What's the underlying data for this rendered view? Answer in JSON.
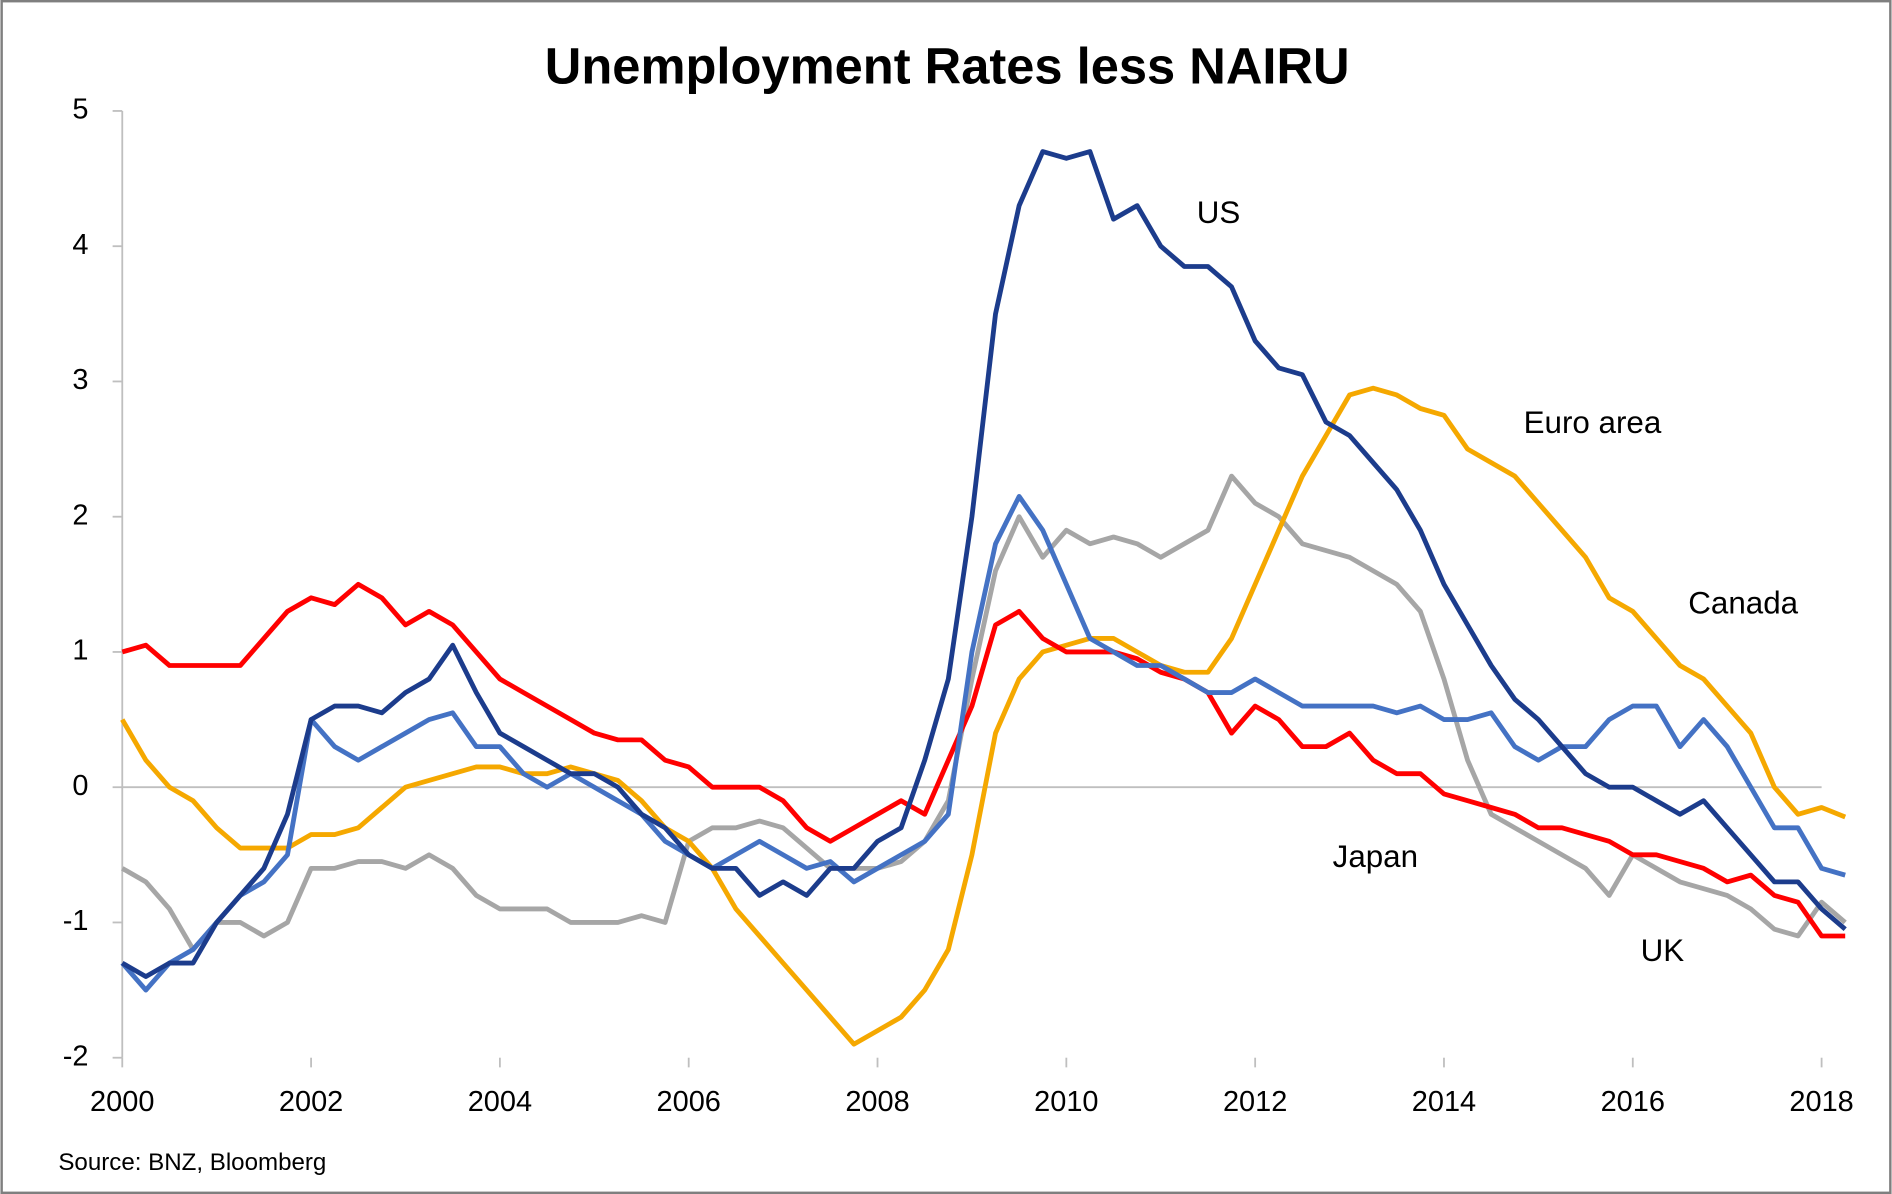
{
  "chart_data": {
    "type": "line",
    "title": "Unemployment Rates less NAIRU",
    "source": "Source: BNZ, Bloomberg",
    "x": [
      2000,
      2000.25,
      2000.5,
      2000.75,
      2001,
      2001.25,
      2001.5,
      2001.75,
      2002,
      2002.25,
      2002.5,
      2002.75,
      2003,
      2003.25,
      2003.5,
      2003.75,
      2004,
      2004.25,
      2004.5,
      2004.75,
      2005,
      2005.25,
      2005.5,
      2005.75,
      2006,
      2006.25,
      2006.5,
      2006.75,
      2007,
      2007.25,
      2007.5,
      2007.75,
      2008,
      2008.25,
      2008.5,
      2008.75,
      2009,
      2009.25,
      2009.5,
      2009.75,
      2010,
      2010.25,
      2010.5,
      2010.75,
      2011,
      2011.25,
      2011.5,
      2011.75,
      2012,
      2012.25,
      2012.5,
      2012.75,
      2013,
      2013.25,
      2013.5,
      2013.75,
      2014,
      2014.25,
      2014.5,
      2014.75,
      2015,
      2015.25,
      2015.5,
      2015.75,
      2016,
      2016.25,
      2016.5,
      2016.75,
      2017,
      2017.25,
      2017.5,
      2017.75,
      2018,
      2018.25
    ],
    "series": [
      {
        "name": "UK",
        "color": "#a6a6a6",
        "values": [
          -0.6,
          -0.7,
          -0.9,
          -1.2,
          -1.0,
          -1.0,
          -1.1,
          -1.0,
          -0.6,
          -0.6,
          -0.55,
          -0.55,
          -0.6,
          -0.5,
          -0.6,
          -0.8,
          -0.9,
          -0.9,
          -0.9,
          -1.0,
          -1.0,
          -1.0,
          -0.95,
          -1.0,
          -0.4,
          -0.3,
          -0.3,
          -0.25,
          -0.3,
          -0.45,
          -0.6,
          -0.6,
          -0.6,
          -0.55,
          -0.4,
          -0.1,
          0.8,
          1.6,
          2.0,
          1.7,
          1.9,
          1.8,
          1.85,
          1.8,
          1.7,
          1.8,
          1.9,
          2.3,
          2.1,
          2.0,
          1.8,
          1.75,
          1.7,
          1.6,
          1.5,
          1.3,
          0.8,
          0.2,
          -0.2,
          -0.3,
          -0.4,
          -0.5,
          -0.6,
          -0.8,
          -0.5,
          -0.6,
          -0.7,
          -0.75,
          -0.8,
          -0.9,
          -1.05,
          -1.1,
          -0.85,
          -1.0
        ]
      },
      {
        "name": "Euro area",
        "color": "#f5a800",
        "values": [
          0.5,
          0.2,
          0.0,
          -0.1,
          -0.3,
          -0.45,
          -0.45,
          -0.45,
          -0.35,
          -0.35,
          -0.3,
          -0.15,
          0.0,
          0.05,
          0.1,
          0.15,
          0.15,
          0.1,
          0.1,
          0.15,
          0.1,
          0.05,
          -0.1,
          -0.3,
          -0.4,
          -0.6,
          -0.9,
          -1.1,
          -1.3,
          -1.5,
          -1.7,
          -1.9,
          -1.8,
          -1.7,
          -1.5,
          -1.2,
          -0.5,
          0.4,
          0.8,
          1.0,
          1.05,
          1.1,
          1.1,
          1.0,
          0.9,
          0.85,
          0.85,
          1.1,
          1.5,
          1.9,
          2.3,
          2.6,
          2.9,
          2.95,
          2.9,
          2.8,
          2.75,
          2.5,
          2.4,
          2.3,
          2.1,
          1.9,
          1.7,
          1.4,
          1.3,
          1.1,
          0.9,
          0.8,
          0.6,
          0.4,
          0.0,
          -0.2,
          -0.15,
          -0.22
        ]
      },
      {
        "name": "Japan",
        "color": "#ff0000",
        "values": [
          1.0,
          1.05,
          0.9,
          0.9,
          0.9,
          0.9,
          1.1,
          1.3,
          1.4,
          1.35,
          1.5,
          1.4,
          1.2,
          1.3,
          1.2,
          1.0,
          0.8,
          0.7,
          0.6,
          0.5,
          0.4,
          0.35,
          0.35,
          0.2,
          0.15,
          0.0,
          0.0,
          0.0,
          -0.1,
          -0.3,
          -0.4,
          -0.3,
          -0.2,
          -0.1,
          -0.2,
          0.2,
          0.6,
          1.2,
          1.3,
          1.1,
          1.0,
          1.0,
          1.0,
          0.95,
          0.85,
          0.8,
          0.7,
          0.4,
          0.6,
          0.5,
          0.3,
          0.3,
          0.4,
          0.2,
          0.1,
          0.1,
          -0.05,
          -0.1,
          -0.15,
          -0.2,
          -0.3,
          -0.3,
          -0.35,
          -0.4,
          -0.5,
          -0.5,
          -0.55,
          -0.6,
          -0.7,
          -0.65,
          -0.8,
          -0.85,
          -1.1,
          -1.1
        ]
      },
      {
        "name": "Canada",
        "color": "#4472c4",
        "values": [
          -1.3,
          -1.5,
          -1.3,
          -1.2,
          -1.0,
          -0.8,
          -0.7,
          -0.5,
          0.5,
          0.3,
          0.2,
          0.3,
          0.4,
          0.5,
          0.55,
          0.3,
          0.3,
          0.1,
          0.0,
          0.1,
          0.0,
          -0.1,
          -0.2,
          -0.4,
          -0.5,
          -0.6,
          -0.5,
          -0.4,
          -0.5,
          -0.6,
          -0.55,
          -0.7,
          -0.6,
          -0.5,
          -0.4,
          -0.2,
          1.0,
          1.8,
          2.15,
          1.9,
          1.5,
          1.1,
          1.0,
          0.9,
          0.9,
          0.8,
          0.7,
          0.7,
          0.8,
          0.7,
          0.6,
          0.6,
          0.6,
          0.6,
          0.55,
          0.6,
          0.5,
          0.5,
          0.55,
          0.3,
          0.2,
          0.3,
          0.3,
          0.5,
          0.6,
          0.6,
          0.3,
          0.5,
          0.3,
          0.0,
          -0.3,
          -0.3,
          -0.6,
          -0.65
        ]
      },
      {
        "name": "US",
        "color": "#1c3c8c",
        "values": [
          -1.3,
          -1.4,
          -1.3,
          -1.3,
          -1.0,
          -0.8,
          -0.6,
          -0.2,
          0.5,
          0.6,
          0.6,
          0.55,
          0.7,
          0.8,
          1.05,
          0.7,
          0.4,
          0.3,
          0.2,
          0.1,
          0.1,
          0.0,
          -0.2,
          -0.3,
          -0.5,
          -0.6,
          -0.6,
          -0.8,
          -0.7,
          -0.8,
          -0.6,
          -0.6,
          -0.4,
          -0.3,
          0.2,
          0.8,
          2.0,
          3.5,
          4.3,
          4.7,
          4.65,
          4.7,
          4.2,
          4.3,
          4.0,
          3.85,
          3.85,
          3.7,
          3.3,
          3.1,
          3.05,
          2.7,
          2.6,
          2.4,
          2.2,
          1.9,
          1.5,
          1.2,
          0.9,
          0.65,
          0.5,
          0.3,
          0.1,
          0.0,
          0.0,
          -0.1,
          -0.2,
          -0.1,
          -0.3,
          -0.5,
          -0.7,
          -0.7,
          -0.9,
          -1.05
        ]
      }
    ],
    "xlim": [
      2000,
      2018
    ],
    "xticks": [
      2000,
      2002,
      2004,
      2006,
      2008,
      2010,
      2012,
      2014,
      2016,
      2018
    ],
    "ylim": [
      -2,
      5
    ],
    "yticks": [
      -2,
      -1,
      0,
      1,
      2,
      3,
      4,
      5
    ]
  }
}
